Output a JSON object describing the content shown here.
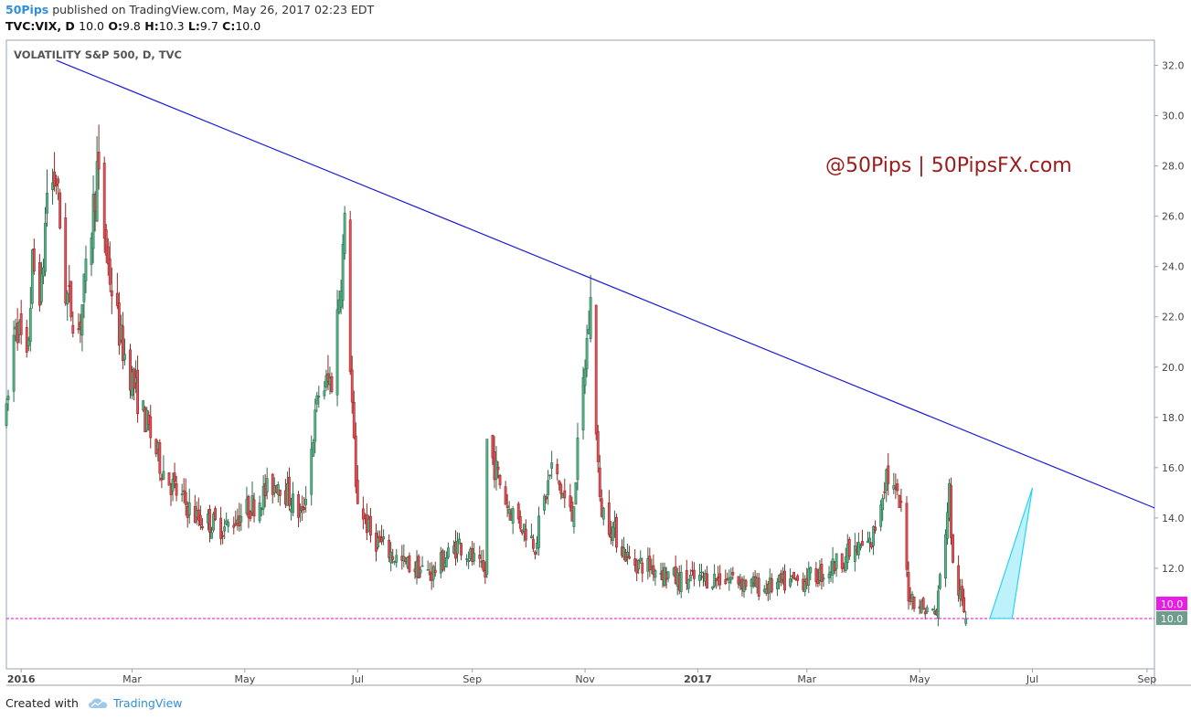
{
  "header": {
    "publisher": "50Pips",
    "published_text": "published on TradingView.com, May 26, 2017 02:23 EDT",
    "symbol": "TVC:VIX, D",
    "close_value": "10.0",
    "ohlc": [
      {
        "label": "O:",
        "value": "9.8"
      },
      {
        "label": "H:",
        "value": "10.3"
      },
      {
        "label": "L:",
        "value": "9.7"
      },
      {
        "label": "C:",
        "value": "10.0"
      }
    ]
  },
  "footer": {
    "created_with": "Created with",
    "brand": "TradingView"
  },
  "chart_data": {
    "type": "candlestick",
    "title": "VOLATILITY S&P 500, D, TVC",
    "watermark": "@50Pips | 50PipsFX.com",
    "y_ticks": [
      12.0,
      14.0,
      16.0,
      18.0,
      20.0,
      22.0,
      24.0,
      26.0,
      28.0,
      30.0,
      32.0
    ],
    "ylim": [
      8.0,
      33.0
    ],
    "x_ticks": [
      "2016",
      "Mar",
      "May",
      "Jul",
      "Sep",
      "Nov",
      "2017",
      "Mar",
      "May",
      "Jul",
      "Sep"
    ],
    "x_range": [
      "2015-12-24",
      "2017-09-05"
    ],
    "price_labels": [
      {
        "value": 10.0,
        "text": "10.0",
        "color": "#e91ee6"
      },
      {
        "value": 10.0,
        "text": "10.0",
        "color": "#6e9d8b"
      }
    ],
    "horizontal_line": {
      "value": 10.0,
      "color": "#e91ee6"
    },
    "trendline": {
      "start": [
        "2016-01-20",
        32.2
      ],
      "end": [
        "2017-09-05",
        14.4
      ],
      "color": "#1a1ad8"
    },
    "projection_triangle": {
      "points": [
        [
          "2017-06-08",
          10.0
        ],
        [
          "2017-06-20",
          10.0
        ],
        [
          "2017-07-01",
          15.2
        ]
      ],
      "color": "#29d4f0"
    },
    "colors": {
      "up": "#53b987",
      "down": "#eb4d5c",
      "up_dark": "#2c6b4c",
      "down_dark": "#8e2a22"
    },
    "anchors": [
      [
        "2015-12-24",
        18.0
      ],
      [
        "2015-12-29",
        22.0
      ],
      [
        "2016-01-04",
        20.0
      ],
      [
        "2016-01-07",
        24.0
      ],
      [
        "2016-01-12",
        23.0
      ],
      [
        "2016-01-15",
        27.0
      ],
      [
        "2016-01-20",
        27.5
      ],
      [
        "2016-01-25",
        23.0
      ],
      [
        "2016-02-01",
        21.5
      ],
      [
        "2016-02-05",
        23.5
      ],
      [
        "2016-02-11",
        27.8
      ],
      [
        "2016-02-17",
        24.0
      ],
      [
        "2016-02-24",
        21.0
      ],
      [
        "2016-03-03",
        19.0
      ],
      [
        "2016-03-10",
        17.5
      ],
      [
        "2016-03-17",
        16.0
      ],
      [
        "2016-03-25",
        15.0
      ],
      [
        "2016-04-05",
        14.0
      ],
      [
        "2016-04-20",
        13.6
      ],
      [
        "2016-05-05",
        14.5
      ],
      [
        "2016-05-19",
        15.5
      ],
      [
        "2016-06-01",
        14.0
      ],
      [
        "2016-06-10",
        19.0
      ],
      [
        "2016-06-17",
        19.5
      ],
      [
        "2016-06-24",
        25.5
      ],
      [
        "2016-06-30",
        15.0
      ],
      [
        "2016-07-08",
        13.3
      ],
      [
        "2016-07-25",
        12.2
      ],
      [
        "2016-08-10",
        11.8
      ],
      [
        "2016-08-25",
        13.0
      ],
      [
        "2016-09-08",
        11.7
      ],
      [
        "2016-09-09",
        17.0
      ],
      [
        "2016-09-20",
        14.5
      ],
      [
        "2016-10-05",
        13.0
      ],
      [
        "2016-10-14",
        16.0
      ],
      [
        "2016-10-25",
        14.0
      ],
      [
        "2016-11-02",
        21.0
      ],
      [
        "2016-11-04",
        22.5
      ],
      [
        "2016-11-09",
        14.5
      ],
      [
        "2016-11-25",
        12.3
      ],
      [
        "2016-12-10",
        12.0
      ],
      [
        "2016-12-22",
        11.5
      ],
      [
        "2017-01-05",
        11.6
      ],
      [
        "2017-01-20",
        11.6
      ],
      [
        "2017-02-05",
        11.2
      ],
      [
        "2017-02-25",
        11.5
      ],
      [
        "2017-03-10",
        11.8
      ],
      [
        "2017-03-22",
        12.5
      ],
      [
        "2017-04-05",
        13.0
      ],
      [
        "2017-04-13",
        15.8
      ],
      [
        "2017-04-21",
        14.3
      ],
      [
        "2017-04-25",
        11.0
      ],
      [
        "2017-05-03",
        10.4
      ],
      [
        "2017-05-10",
        10.2
      ],
      [
        "2017-05-17",
        15.0
      ],
      [
        "2017-05-19",
        12.0
      ],
      [
        "2017-05-26",
        10.0
      ]
    ]
  }
}
